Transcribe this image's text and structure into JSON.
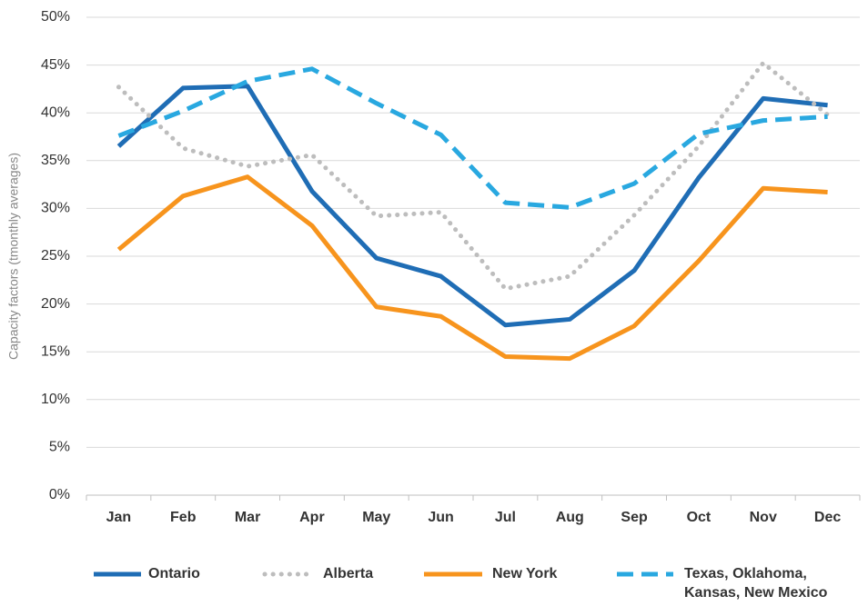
{
  "chart_data": {
    "type": "line",
    "y_label": "Capacity factors (tmonthly averages)",
    "categories": [
      "Jan",
      "Feb",
      "Mar",
      "Apr",
      "May",
      "Jun",
      "Jul",
      "Aug",
      "Sep",
      "Oct",
      "Nov",
      "Dec"
    ],
    "series": [
      {
        "name": "Ontario",
        "color": "#1f6db5",
        "dash": "solid",
        "values": [
          36.5,
          42.6,
          42.8,
          31.8,
          24.8,
          22.9,
          17.8,
          18.4,
          23.5,
          33.2,
          41.5,
          40.8
        ]
      },
      {
        "name": "Alberta",
        "color": "#bdbdbd",
        "dash": "dotted",
        "values": [
          42.7,
          36.3,
          34.4,
          35.6,
          29.2,
          29.6,
          21.6,
          22.9,
          29.3,
          36.5,
          45.2,
          39.8
        ]
      },
      {
        "name": "New York",
        "color": "#f7941d",
        "dash": "solid",
        "values": [
          25.7,
          31.3,
          33.3,
          28.2,
          19.7,
          18.7,
          14.5,
          14.3,
          17.7,
          24.5,
          32.1,
          31.7
        ]
      },
      {
        "name": "Texas, Oklahoma, Kansas, New Mexico",
        "color": "#29a8e0",
        "dash": "dashed",
        "values": [
          37.6,
          40.2,
          43.3,
          44.6,
          41.0,
          37.7,
          30.6,
          30.1,
          32.6,
          37.8,
          39.2,
          39.6
        ]
      }
    ],
    "ylim": [
      0,
      50
    ],
    "yticks": [
      {
        "value": 0,
        "label": "0%"
      },
      {
        "value": 5,
        "label": "5%"
      },
      {
        "value": 10,
        "label": "10%"
      },
      {
        "value": 15,
        "label": "15%"
      },
      {
        "value": 20,
        "label": "20%"
      },
      {
        "value": 25,
        "label": "25%"
      },
      {
        "value": 30,
        "label": "30%"
      },
      {
        "value": 35,
        "label": "35%"
      },
      {
        "value": 40,
        "label": "40%"
      },
      {
        "value": 45,
        "label": "45%"
      },
      {
        "value": 50,
        "label": "50%"
      }
    ],
    "grid": true,
    "legend": "bottom"
  }
}
